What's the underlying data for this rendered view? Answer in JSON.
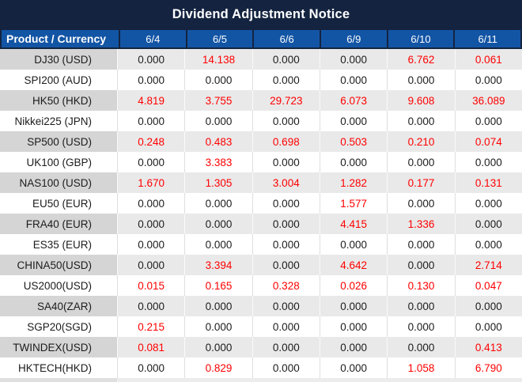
{
  "title": "Dividend Adjustment Notice",
  "table": {
    "product_header": "Product / Currency",
    "date_headers": [
      "6/4",
      "6/5",
      "6/6",
      "6/9",
      "6/10",
      "6/11"
    ],
    "rows": [
      {
        "product": "DJ30 (USD)",
        "values": [
          "0.000",
          "14.138",
          "0.000",
          "0.000",
          "6.762",
          "0.061"
        ],
        "red": [
          false,
          true,
          false,
          false,
          true,
          true
        ]
      },
      {
        "product": "SPI200 (AUD)",
        "values": [
          "0.000",
          "0.000",
          "0.000",
          "0.000",
          "0.000",
          "0.000"
        ],
        "red": [
          false,
          false,
          false,
          false,
          false,
          false
        ]
      },
      {
        "product": "HK50 (HKD)",
        "values": [
          "4.819",
          "3.755",
          "29.723",
          "6.073",
          "9.608",
          "36.089"
        ],
        "red": [
          true,
          true,
          true,
          true,
          true,
          true
        ]
      },
      {
        "product": "Nikkei225 (JPN)",
        "values": [
          "0.000",
          "0.000",
          "0.000",
          "0.000",
          "0.000",
          "0.000"
        ],
        "red": [
          false,
          false,
          false,
          false,
          false,
          false
        ]
      },
      {
        "product": "SP500 (USD)",
        "values": [
          "0.248",
          "0.483",
          "0.698",
          "0.503",
          "0.210",
          "0.074"
        ],
        "red": [
          true,
          true,
          true,
          true,
          true,
          true
        ]
      },
      {
        "product": "UK100 (GBP)",
        "values": [
          "0.000",
          "3.383",
          "0.000",
          "0.000",
          "0.000",
          "0.000"
        ],
        "red": [
          false,
          true,
          false,
          false,
          false,
          false
        ]
      },
      {
        "product": "NAS100 (USD)",
        "values": [
          "1.670",
          "1.305",
          "3.004",
          "1.282",
          "0.177",
          "0.131"
        ],
        "red": [
          true,
          true,
          true,
          true,
          true,
          true
        ]
      },
      {
        "product": "EU50 (EUR)",
        "values": [
          "0.000",
          "0.000",
          "0.000",
          "1.577",
          "0.000",
          "0.000"
        ],
        "red": [
          false,
          false,
          false,
          true,
          false,
          false
        ]
      },
      {
        "product": "FRA40 (EUR)",
        "values": [
          "0.000",
          "0.000",
          "0.000",
          "4.415",
          "1.336",
          "0.000"
        ],
        "red": [
          false,
          false,
          false,
          true,
          true,
          false
        ]
      },
      {
        "product": "ES35 (EUR)",
        "values": [
          "0.000",
          "0.000",
          "0.000",
          "0.000",
          "0.000",
          "0.000"
        ],
        "red": [
          false,
          false,
          false,
          false,
          false,
          false
        ]
      },
      {
        "product": "CHINA50(USD)",
        "values": [
          "0.000",
          "3.394",
          "0.000",
          "4.642",
          "0.000",
          "2.714"
        ],
        "red": [
          false,
          true,
          false,
          true,
          false,
          true
        ]
      },
      {
        "product": "US2000(USD)",
        "values": [
          "0.015",
          "0.165",
          "0.328",
          "0.026",
          "0.130",
          "0.047"
        ],
        "red": [
          true,
          true,
          true,
          true,
          true,
          true
        ]
      },
      {
        "product": "SA40(ZAR)",
        "values": [
          "0.000",
          "0.000",
          "0.000",
          "0.000",
          "0.000",
          "0.000"
        ],
        "red": [
          false,
          false,
          false,
          false,
          false,
          false
        ]
      },
      {
        "product": "SGP20(SGD)",
        "values": [
          "0.215",
          "0.000",
          "0.000",
          "0.000",
          "0.000",
          "0.000"
        ],
        "red": [
          true,
          false,
          false,
          false,
          false,
          false
        ]
      },
      {
        "product": "TWINDEX(USD)",
        "values": [
          "0.081",
          "0.000",
          "0.000",
          "0.000",
          "0.000",
          "0.413"
        ],
        "red": [
          true,
          false,
          false,
          false,
          false,
          true
        ]
      },
      {
        "product": "HKTECH(HKD)",
        "values": [
          "0.000",
          "0.829",
          "0.000",
          "0.000",
          "1.058",
          "6.790"
        ],
        "red": [
          false,
          true,
          false,
          false,
          true,
          true
        ]
      }
    ]
  },
  "colors": {
    "title_bar_bg": "#142440",
    "header_cell_bg": "#1355a5",
    "header_text": "#ffffff",
    "row_gray_product_bg": "#d5d5d5",
    "row_gray_value_bg": "#e9e9e9",
    "row_white_bg": "#ffffff",
    "value_text": "#1c1c1c",
    "highlight_red": "#ff0000",
    "bottom_strip_bg": "#ececec"
  }
}
